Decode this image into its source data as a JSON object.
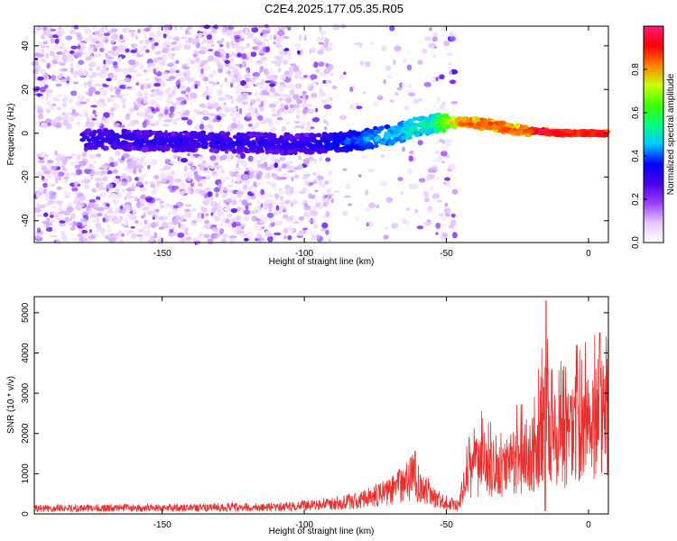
{
  "figure": {
    "title": "C2E4.2025.177.05.35.R05"
  },
  "chart_data": [
    {
      "type": "heatmap",
      "xlabel": "Height of straight line (km)",
      "ylabel": "Frequency (Hz)",
      "xlim": [
        -195,
        7
      ],
      "ylim": [
        -50,
        49
      ],
      "xticks": [
        -150,
        -100,
        -50,
        0
      ],
      "yticks": [
        -40,
        -20,
        0,
        20,
        40
      ],
      "colorbar": {
        "label": "Normalized spectral amplitude",
        "range": [
          0.0,
          1.0
        ],
        "ticks": [
          0.0,
          0.2,
          0.4,
          0.6,
          0.8
        ],
        "colors": [
          "#ffffff",
          "#e6c8ff",
          "#9a40ff",
          "#4a00e6",
          "#0000ff",
          "#00c8ff",
          "#00ff80",
          "#40ff00",
          "#c8ff00",
          "#ff8000",
          "#ff0000",
          "#ff1a80"
        ]
      },
      "ridge": [
        {
          "x": -170,
          "y": -3
        },
        {
          "x": -130,
          "y": -4
        },
        {
          "x": -100,
          "y": -5
        },
        {
          "x": -85,
          "y": -4
        },
        {
          "x": -70,
          "y": -1
        },
        {
          "x": -60,
          "y": 3
        },
        {
          "x": -52,
          "y": 5
        },
        {
          "x": -45,
          "y": 5
        },
        {
          "x": -35,
          "y": 4
        },
        {
          "x": -28,
          "y": 2
        },
        {
          "x": -18,
          "y": 1
        },
        {
          "x": -10,
          "y": 0
        },
        {
          "x": 5,
          "y": 0
        }
      ]
    },
    {
      "type": "line",
      "xlabel": "Height of straight line (km)",
      "ylabel": "SNR (10 * v/v)",
      "xlim": [
        -195,
        7
      ],
      "ylim": [
        0,
        5400
      ],
      "xticks": [
        -150,
        -100,
        -50,
        0
      ],
      "yticks": [
        0,
        1000,
        2000,
        3000,
        4000,
        5000
      ],
      "series": [
        {
          "color": "#e8312f",
          "envelope": [
            {
              "x": -195,
              "y": 200
            },
            {
              "x": -150,
              "y": 220
            },
            {
              "x": -110,
              "y": 250
            },
            {
              "x": -95,
              "y": 320
            },
            {
              "x": -80,
              "y": 500
            },
            {
              "x": -70,
              "y": 800
            },
            {
              "x": -65,
              "y": 1100
            },
            {
              "x": -62,
              "y": 1300
            },
            {
              "x": -58,
              "y": 900
            },
            {
              "x": -52,
              "y": 450
            },
            {
              "x": -46,
              "y": 300
            },
            {
              "x": -42,
              "y": 1500
            },
            {
              "x": -36,
              "y": 1800
            },
            {
              "x": -30,
              "y": 1600
            },
            {
              "x": -24,
              "y": 1900
            },
            {
              "x": -19,
              "y": 2000
            },
            {
              "x": -16,
              "y": 3200
            },
            {
              "x": -15,
              "y": 3600
            },
            {
              "x": -13,
              "y": 2700
            },
            {
              "x": -8,
              "y": 2500
            },
            {
              "x": -3,
              "y": 3000
            },
            {
              "x": 1,
              "y": 3300
            },
            {
              "x": 5,
              "y": 3500
            }
          ],
          "peaks": [
            {
              "x": -61,
              "y": 1550
            },
            {
              "x": -42,
              "y": 1900
            },
            {
              "x": -15,
              "y": 5300
            },
            {
              "x": 4,
              "y": 4500
            }
          ]
        }
      ]
    }
  ]
}
